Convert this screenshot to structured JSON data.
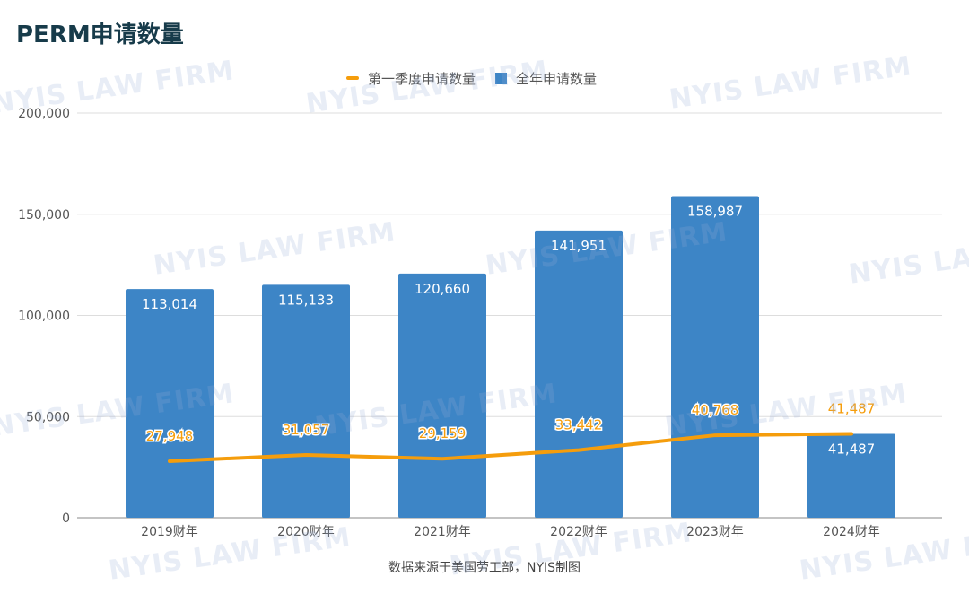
{
  "title": "PERM申请数量",
  "source_note": "数据来源于美国劳工部，NYIS制图",
  "watermark_text": "NYIS LAW FIRM",
  "colors": {
    "bar": "#3d85c6",
    "line": "#f59d0c",
    "bar_label": "#ffffff",
    "line_label": "#f59d0c",
    "grid": "#dddddd",
    "axis_text": "#555555"
  },
  "legend": {
    "line_label": "第一季度申请数量",
    "bar_label": "全年申请数量"
  },
  "chart_data": {
    "type": "bar",
    "title": "PERM申请数量",
    "categories": [
      "2019财年",
      "2020财年",
      "2021财年",
      "2022财年",
      "2023财年",
      "2024财年"
    ],
    "series": [
      {
        "name": "全年申请数量",
        "kind": "bar",
        "values": [
          113014,
          115133,
          120660,
          141951,
          158987,
          41487
        ],
        "labels": [
          "113,014",
          "115,133",
          "120,660",
          "141,951",
          "158,987",
          "41,487"
        ]
      },
      {
        "name": "第一季度申请数量",
        "kind": "line",
        "values": [
          27948,
          31057,
          29159,
          33442,
          40768,
          41487
        ],
        "labels": [
          "27,948",
          "31,057",
          "29,159",
          "33,442",
          "40,768",
          "41,487"
        ]
      }
    ],
    "ylim": [
      0,
      200000
    ],
    "yticks": [
      0,
      50000,
      100000,
      150000,
      200000
    ],
    "ytick_labels": [
      "0",
      "50,000",
      "100,000",
      "150,000",
      "200,000"
    ],
    "grid": true,
    "legend_position": "top-center"
  }
}
